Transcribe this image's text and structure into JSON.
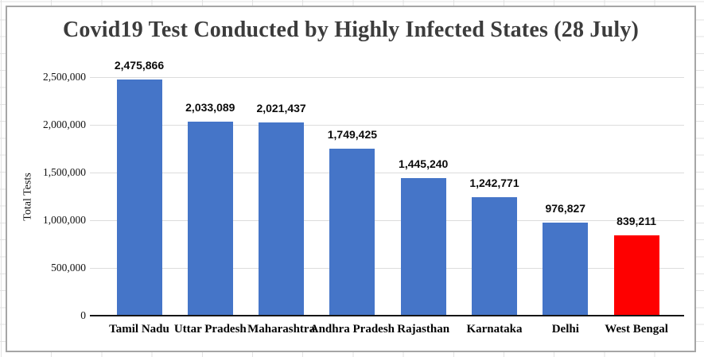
{
  "chart_data": {
    "type": "bar",
    "title": "Covid19 Test Conducted by Highly Infected States (28 July)",
    "xlabel": "",
    "ylabel": "Total Tests",
    "categories": [
      "Tamil Nadu",
      "Uttar Pradesh",
      "Maharashtra",
      "Andhra Pradesh",
      "Rajasthan",
      "Karnataka",
      "Delhi",
      "West Bengal"
    ],
    "values": [
      2475866,
      2033089,
      2021437,
      1749425,
      1445240,
      1242771,
      976827,
      839211
    ],
    "value_labels": [
      "2,475,866",
      "2,033,089",
      "2,021,437",
      "1,749,425",
      "1,445,240",
      "1,242,771",
      "976,827",
      "839,211"
    ],
    "bar_colors": [
      "#4575c8",
      "#4575c8",
      "#4575c8",
      "#4575c8",
      "#4575c8",
      "#4575c8",
      "#4575c8",
      "#fe0000"
    ],
    "default_bar_color": "#4575c8",
    "highlight_color": "#fe0000",
    "ylim": [
      0,
      2500000
    ],
    "ytick_interval": 500000,
    "ytick_labels": [
      "0",
      "500,000",
      "1,000,000",
      "1,500,000",
      "2,000,000",
      "2,500,000"
    ],
    "grid": true,
    "gridline_color": "#dcdcdc",
    "legend": "none",
    "title_color": "#3c3c3c"
  }
}
